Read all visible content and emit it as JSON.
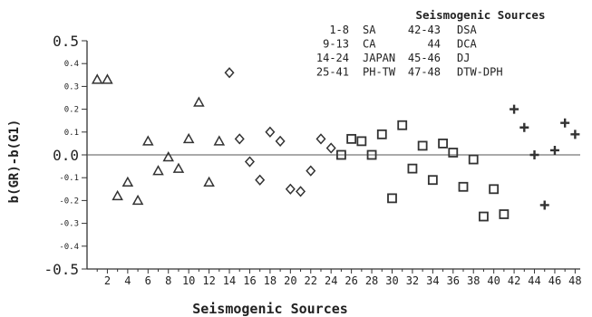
{
  "chart_data": {
    "type": "scatter",
    "title": "",
    "xlabel": "Seismogenic Sources",
    "ylabel": "b(GR)-b(G1)",
    "xlim": [
      0,
      48.5
    ],
    "ylim": [
      -0.5,
      0.5
    ],
    "x_ticks": [
      "2",
      "4",
      "6",
      "8",
      "10",
      "12",
      "14",
      "16",
      "18",
      "20",
      "22",
      "24",
      "26",
      "28",
      "30",
      "32",
      "34",
      "36",
      "38",
      "40",
      "42",
      "44",
      "46",
      "48"
    ],
    "y_ticks": [
      "0.5",
      "0.4",
      "0.3",
      "0.2",
      "0.1",
      "0.0",
      "-0.1",
      "-0.2",
      "-0.3",
      "-0.4",
      "-0.5"
    ],
    "grid": false,
    "legend_placement": "top-right",
    "legend": {
      "title": "Seismogenic Sources",
      "rows": [
        {
          "range_left": "1-8",
          "name_left": "SA",
          "range_right": "42-43",
          "name_right": "DSA"
        },
        {
          "range_left": "9-13",
          "name_left": "CA",
          "range_right": "44",
          "name_right": "DCA"
        },
        {
          "range_left": "14-24",
          "name_left": "JAPAN",
          "range_right": "45-46",
          "name_right": "DJ"
        },
        {
          "range_left": "25-41",
          "name_left": "PH-TW",
          "range_right": "47-48",
          "name_right": "DTW-DPH"
        }
      ]
    },
    "series": [
      {
        "marker": "triangle",
        "points": [
          [
            1,
            0.33
          ],
          [
            2,
            0.33
          ],
          [
            3,
            -0.18
          ],
          [
            4,
            -0.12
          ],
          [
            5,
            -0.2
          ],
          [
            6,
            0.06
          ],
          [
            7,
            -0.07
          ],
          [
            8,
            -0.01
          ],
          [
            9,
            -0.06
          ],
          [
            10,
            0.07
          ],
          [
            11,
            0.23
          ],
          [
            12,
            -0.12
          ],
          [
            13,
            0.06
          ]
        ]
      },
      {
        "marker": "diamond",
        "points": [
          [
            14,
            0.36
          ],
          [
            15,
            0.07
          ],
          [
            16,
            -0.03
          ],
          [
            17,
            -0.11
          ],
          [
            18,
            0.1
          ],
          [
            19,
            0.06
          ],
          [
            20,
            -0.15
          ],
          [
            21,
            -0.16
          ],
          [
            22,
            -0.07
          ],
          [
            23,
            0.07
          ],
          [
            24,
            0.03
          ]
        ]
      },
      {
        "marker": "square",
        "points": [
          [
            25,
            0.0
          ],
          [
            26,
            0.07
          ],
          [
            27,
            0.06
          ],
          [
            28,
            0.0
          ],
          [
            29,
            0.09
          ],
          [
            30,
            -0.19
          ],
          [
            31,
            0.13
          ],
          [
            32,
            -0.06
          ],
          [
            33,
            0.04
          ],
          [
            34,
            -0.11
          ],
          [
            35,
            0.05
          ],
          [
            36,
            0.01
          ],
          [
            37,
            -0.14
          ],
          [
            38,
            -0.02
          ],
          [
            39,
            -0.27
          ],
          [
            40,
            -0.15
          ],
          [
            41,
            -0.26
          ]
        ]
      },
      {
        "marker": "plus",
        "points": [
          [
            42,
            0.2
          ],
          [
            43,
            0.12
          ],
          [
            44,
            0.0
          ],
          [
            45,
            -0.22
          ],
          [
            46,
            0.02
          ],
          [
            47,
            0.14
          ],
          [
            48,
            0.09
          ]
        ]
      }
    ]
  }
}
